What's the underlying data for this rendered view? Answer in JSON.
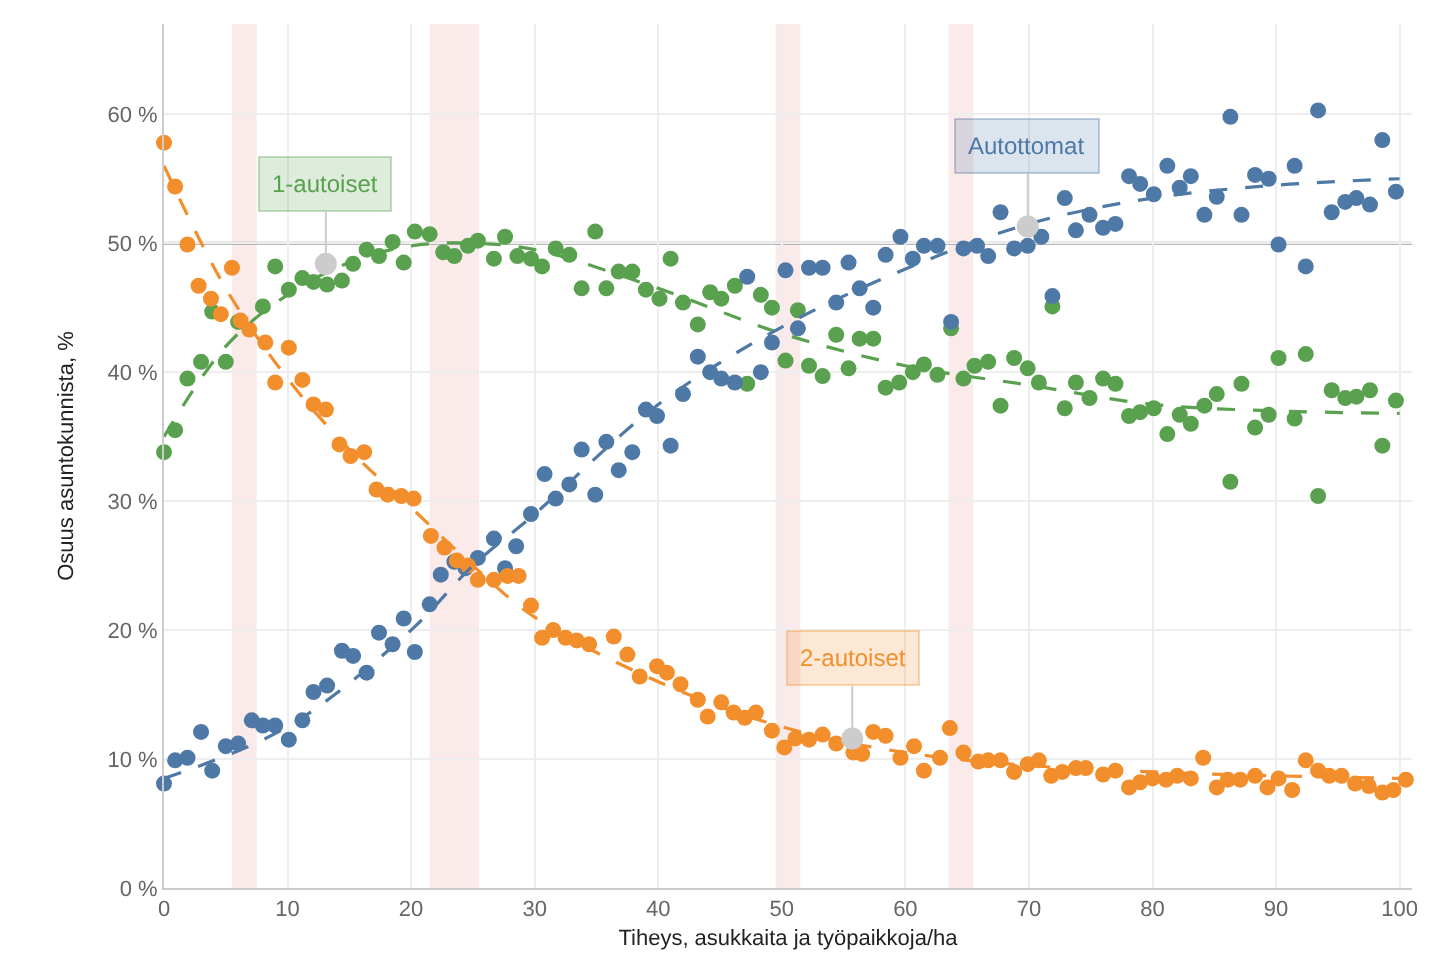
{
  "chart_data": {
    "type": "scatter",
    "xlabel": "Tiheys, asukkaita ja työpaikkoja/ha",
    "ylabel": "Osuus asuntokunnista, %",
    "xlim": [
      0,
      101
    ],
    "xticks": [
      0,
      10,
      20,
      30,
      40,
      50,
      60,
      70,
      80,
      90,
      100
    ],
    "ylim": [
      0,
      67
    ],
    "yticks": [
      {
        "value": 0,
        "label": "0 %"
      },
      {
        "value": 10,
        "label": "10 %"
      },
      {
        "value": 20,
        "label": "20 %"
      },
      {
        "value": 30,
        "label": "30 %"
      },
      {
        "value": 40,
        "label": "40 %"
      },
      {
        "value": 50,
        "label": "50 %"
      },
      {
        "value": 60,
        "label": "60 %"
      }
    ],
    "grid": true,
    "marker": "circle",
    "ref_lines": [
      {
        "axis": "y",
        "value": 50,
        "color": "#a0a0a0"
      }
    ],
    "bands": [
      {
        "axis": "x",
        "from": 5.5,
        "to": 7.5,
        "color": "#fbeaea"
      },
      {
        "axis": "x",
        "from": 21.5,
        "to": 25.5,
        "color": "#fbeaea"
      },
      {
        "axis": "x",
        "from": 49.5,
        "to": 51.5,
        "color": "#fbeaea"
      },
      {
        "axis": "x",
        "from": 63.5,
        "to": 65.5,
        "color": "#fbeaea"
      }
    ],
    "annotations": [
      {
        "text": "1-autoiset",
        "x": 13.1,
        "y": 48.4
      },
      {
        "text": "Autottomat",
        "x": 69.9,
        "y": 51.3
      },
      {
        "text": "2-autoiset",
        "x": 55.7,
        "y": 11.6
      }
    ],
    "series": [
      {
        "color": "#59a14f",
        "x": [
          0,
          0.9,
          1.9,
          3.0,
          3.9,
          5.0,
          6.0,
          8.0,
          9.0,
          10.1,
          11.2,
          12.1,
          13.2,
          14.4,
          15.3,
          16.4,
          17.4,
          18.5,
          19.4,
          20.3,
          21.5,
          22.6,
          23.5,
          24.6,
          25.4,
          26.7,
          27.6,
          28.6,
          29.7,
          30.6,
          31.7,
          32.8,
          33.8,
          34.9,
          35.8,
          36.8,
          37.9,
          39.0,
          40.1,
          41.0,
          42.0,
          43.2,
          44.2,
          45.1,
          46.2,
          47.2,
          48.3,
          49.2,
          50.3,
          51.3,
          52.2,
          53.3,
          54.4,
          55.4,
          56.3,
          57.4,
          58.4,
          59.5,
          60.6,
          61.5,
          62.6,
          63.7,
          64.7,
          65.6,
          66.7,
          67.7,
          68.8,
          69.9,
          70.8,
          71.9,
          72.9,
          73.8,
          74.9,
          76.0,
          77.0,
          78.1,
          79.0,
          80.1,
          81.2,
          82.2,
          83.1,
          84.2,
          85.2,
          86.3,
          87.2,
          88.3,
          89.4,
          90.2,
          91.5,
          92.4,
          93.4,
          94.5,
          95.6,
          96.5,
          97.6,
          98.6,
          99.7
        ],
        "values": [
          33.8,
          35.5,
          39.5,
          40.8,
          44.7,
          40.8,
          43.9,
          45.1,
          48.2,
          46.4,
          47.3,
          47.0,
          46.8,
          47.1,
          48.4,
          49.5,
          49.0,
          50.1,
          48.5,
          50.9,
          50.7,
          49.3,
          49.0,
          49.8,
          50.2,
          48.8,
          50.5,
          49.0,
          48.8,
          48.2,
          49.6,
          49.1,
          46.5,
          50.9,
          46.5,
          47.8,
          47.8,
          46.4,
          45.7,
          48.8,
          45.4,
          43.7,
          46.2,
          45.7,
          46.7,
          39.1,
          46.0,
          45.0,
          40.9,
          44.8,
          40.5,
          39.7,
          42.9,
          40.3,
          42.6,
          42.6,
          38.8,
          39.2,
          40.0,
          40.6,
          39.8,
          43.4,
          39.5,
          40.5,
          40.8,
          37.4,
          41.1,
          40.3,
          39.2,
          45.1,
          37.2,
          39.2,
          38.0,
          39.5,
          39.1,
          36.6,
          36.9,
          37.2,
          35.2,
          36.7,
          36.0,
          37.4,
          38.3,
          31.5,
          39.1,
          35.7,
          36.7,
          41.1,
          36.4,
          41.4,
          30.4,
          38.6,
          38.0,
          38.1,
          38.6,
          34.3,
          37.8
        ]
      },
      {
        "color": "#4e79a7",
        "x": [
          0,
          0.9,
          1.9,
          3.0,
          3.9,
          5.0,
          6.0,
          7.1,
          8.0,
          9.0,
          10.1,
          11.2,
          12.1,
          13.2,
          14.4,
          15.3,
          16.4,
          17.4,
          18.5,
          19.4,
          20.3,
          21.5,
          22.4,
          23.5,
          24.4,
          25.4,
          26.7,
          27.6,
          28.5,
          29.7,
          30.8,
          31.7,
          32.8,
          33.8,
          34.9,
          35.8,
          36.8,
          37.9,
          39.0,
          39.9,
          41.0,
          42.0,
          43.2,
          44.2,
          45.1,
          46.2,
          47.2,
          48.3,
          49.2,
          50.3,
          51.3,
          52.2,
          53.3,
          54.4,
          55.4,
          56.3,
          57.4,
          58.4,
          59.6,
          60.6,
          61.5,
          62.6,
          63.7,
          64.7,
          65.8,
          66.7,
          67.7,
          68.8,
          69.9,
          71.0,
          71.9,
          72.9,
          73.8,
          74.9,
          76.0,
          77.0,
          78.1,
          79.0,
          80.1,
          81.2,
          82.2,
          83.1,
          84.2,
          85.2,
          86.3,
          87.2,
          88.3,
          89.4,
          90.2,
          91.5,
          92.4,
          93.4,
          94.5,
          95.6,
          96.5,
          97.6,
          98.6,
          99.7
        ],
        "values": [
          8.1,
          9.9,
          10.1,
          12.1,
          9.1,
          11.0,
          11.2,
          13.0,
          12.6,
          12.6,
          11.5,
          13.0,
          15.2,
          15.7,
          18.4,
          18.0,
          16.7,
          19.8,
          18.9,
          20.9,
          18.3,
          22.0,
          24.3,
          25.3,
          24.8,
          25.6,
          27.1,
          24.8,
          26.5,
          29.0,
          32.1,
          30.2,
          31.3,
          34.0,
          30.5,
          34.6,
          32.4,
          33.8,
          37.1,
          36.6,
          34.3,
          38.3,
          41.2,
          40.0,
          39.5,
          39.2,
          47.4,
          40.0,
          42.3,
          47.9,
          43.4,
          48.1,
          48.1,
          45.4,
          48.5,
          46.5,
          45.0,
          49.1,
          50.5,
          48.8,
          49.8,
          49.8,
          43.9,
          49.6,
          49.8,
          49.0,
          52.4,
          49.6,
          49.8,
          50.5,
          45.9,
          53.5,
          51.0,
          52.2,
          51.2,
          51.5,
          55.2,
          54.6,
          53.8,
          56.0,
          54.3,
          55.2,
          52.2,
          53.6,
          59.8,
          52.2,
          55.3,
          55.0,
          49.9,
          56.0,
          48.2,
          60.3,
          52.4,
          53.2,
          53.5,
          53.0,
          58.0,
          54.0
        ]
      },
      {
        "color": "#f28e2b",
        "x": [
          0,
          0.9,
          1.9,
          2.8,
          3.8,
          4.6,
          5.5,
          6.2,
          6.9,
          8.2,
          9.0,
          10.1,
          11.2,
          12.1,
          13.1,
          14.2,
          15.1,
          16.2,
          17.2,
          18.1,
          19.2,
          20.2,
          21.6,
          22.7,
          23.7,
          24.6,
          25.4,
          26.7,
          27.8,
          28.7,
          29.7,
          30.6,
          31.5,
          32.5,
          33.4,
          34.4,
          36.4,
          37.5,
          38.5,
          39.9,
          40.7,
          41.8,
          43.2,
          44.0,
          45.1,
          46.1,
          47.0,
          47.9,
          49.2,
          50.2,
          51.1,
          52.2,
          53.3,
          54.4,
          55.8,
          56.5,
          57.4,
          58.4,
          59.6,
          60.7,
          61.5,
          62.8,
          63.6,
          64.7,
          65.9,
          66.7,
          67.7,
          68.8,
          69.9,
          70.8,
          71.8,
          72.7,
          73.8,
          74.6,
          76.0,
          77.0,
          78.1,
          79.0,
          80.0,
          81.1,
          82.0,
          83.1,
          84.1,
          85.2,
          86.1,
          87.1,
          88.3,
          89.3,
          90.2,
          91.3,
          92.4,
          93.4,
          94.3,
          95.3,
          96.4,
          97.5,
          98.6,
          99.5,
          100.5
        ],
        "values": [
          57.8,
          54.4,
          49.9,
          46.7,
          45.7,
          44.5,
          48.1,
          44.0,
          43.3,
          42.3,
          39.2,
          41.9,
          39.4,
          37.5,
          37.1,
          34.4,
          33.5,
          33.8,
          30.9,
          30.5,
          30.4,
          30.2,
          27.3,
          26.4,
          25.4,
          25.0,
          23.9,
          23.9,
          24.2,
          24.2,
          21.9,
          19.4,
          20.0,
          19.4,
          19.2,
          18.9,
          19.5,
          18.1,
          16.4,
          17.2,
          16.7,
          15.8,
          14.6,
          13.3,
          14.4,
          13.6,
          13.2,
          13.6,
          12.2,
          10.9,
          11.6,
          11.5,
          11.9,
          11.2,
          10.5,
          10.4,
          12.1,
          11.8,
          10.1,
          11.0,
          9.1,
          10.1,
          12.4,
          10.5,
          9.8,
          9.9,
          9.9,
          9.0,
          9.6,
          9.9,
          8.7,
          9.0,
          9.3,
          9.3,
          8.8,
          9.1,
          7.8,
          8.2,
          8.5,
          8.4,
          8.7,
          8.5,
          10.1,
          7.8,
          8.4,
          8.4,
          8.7,
          7.8,
          8.5,
          7.6,
          9.9,
          9.1,
          8.7,
          8.7,
          8.1,
          7.9,
          7.4,
          7.6,
          8.4
        ]
      },
      {
        "type": "line",
        "line_style": "dashed",
        "marker": "none",
        "color": "#59a14f",
        "x": [
          0,
          5,
          10,
          15,
          20,
          25,
          30,
          40,
          50,
          60,
          70,
          80,
          90,
          100
        ],
        "values": [
          35,
          42,
          46,
          48.5,
          49.8,
          50,
          49.5,
          46.5,
          43,
          40.5,
          39,
          37.5,
          37,
          36.8
        ]
      },
      {
        "type": "line",
        "line_style": "dashed",
        "marker": "none",
        "color": "#4e79a7",
        "x": [
          0,
          10,
          20,
          25,
          30,
          40,
          50,
          60,
          70,
          80,
          90,
          100
        ],
        "values": [
          8.5,
          12.5,
          20,
          25,
          29,
          37.5,
          43.5,
          48,
          51.5,
          53.5,
          54.5,
          55
        ]
      },
      {
        "type": "line",
        "line_style": "dashed",
        "marker": "none",
        "color": "#f28e2b",
        "x": [
          0,
          5,
          10,
          15,
          20,
          25,
          30,
          40,
          50,
          60,
          70,
          80,
          90,
          100
        ],
        "values": [
          56,
          46.5,
          39.5,
          34,
          29.5,
          25,
          21,
          16,
          12.5,
          10.5,
          9.5,
          9,
          8.7,
          8.5
        ]
      }
    ]
  }
}
